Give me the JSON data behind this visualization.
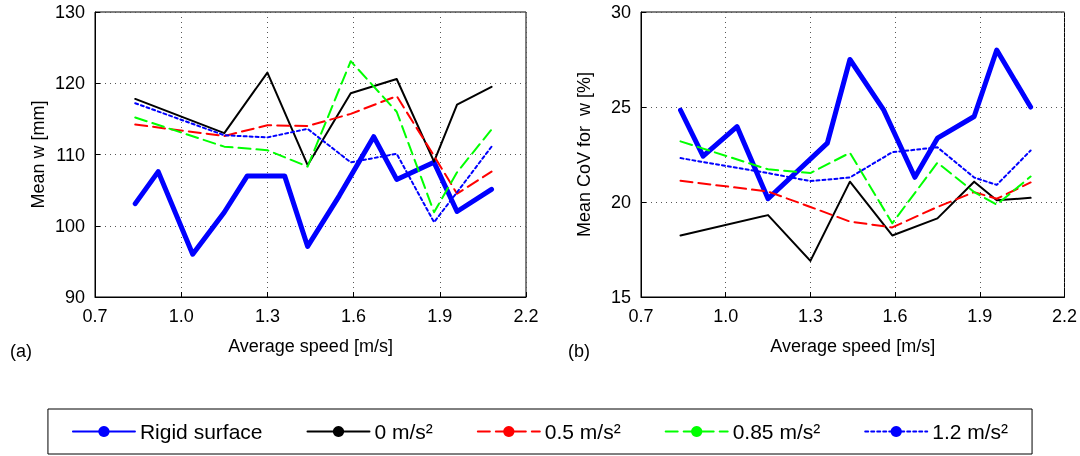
{
  "chart_data": [
    {
      "type": "line",
      "xlabel": "Average speed [m/s]",
      "ylabel": "Mean w [mm]",
      "annotations": [
        "(a)"
      ],
      "xlim": [
        0.7,
        2.2
      ],
      "xticks": [
        0.7,
        {
          "value": 1,
          "label": "1.0"
        },
        1.3,
        1.6,
        1.9,
        2.2
      ],
      "ylim": [
        90,
        130
      ],
      "yticks": [
        90,
        100,
        110,
        120,
        130
      ],
      "grid": true,
      "legend": "bottom",
      "marker": "none",
      "series": [
        {
          "name": "Rigid surface",
          "color": "#0000ff",
          "line_style": "solid",
          "x": [
            0.84,
            0.92,
            1.04,
            1.15,
            1.23,
            1.36,
            1.44,
            1.55,
            1.67,
            1.75,
            1.88,
            1.96,
            2.08
          ],
          "values": [
            103.1,
            107.6,
            96.0,
            101.9,
            107.0,
            107.0,
            97.1,
            104.2,
            112.5,
            106.5,
            108.9,
            102.0,
            105.1
          ]
        },
        {
          "name": "0 m/s²",
          "color": "#000000",
          "line_style": "solid",
          "x": [
            0.84,
            1.15,
            1.3,
            1.44,
            1.59,
            1.75,
            1.88,
            1.96,
            2.08
          ],
          "values": [
            117.8,
            113.0,
            121.5,
            108.5,
            118.6,
            120.6,
            109.0,
            117.0,
            119.5
          ]
        },
        {
          "name": "0.5 m/s²",
          "color": "#ff0000",
          "line_style": "dashed",
          "x": [
            0.84,
            1.15,
            1.3,
            1.44,
            1.59,
            1.75,
            1.88,
            1.96,
            2.08
          ],
          "values": [
            114.2,
            112.6,
            114.1,
            114.0,
            115.7,
            118.2,
            109.8,
            104.5,
            107.6
          ]
        },
        {
          "name": "0.85 m/s²",
          "color": "#00ff00",
          "line_style": "dashed",
          "x": [
            0.84,
            1.15,
            1.3,
            1.44,
            1.59,
            1.75,
            1.88,
            1.96,
            2.08
          ],
          "values": [
            115.2,
            111.1,
            110.6,
            108.3,
            123.1,
            116.0,
            101.9,
            107.5,
            113.5
          ]
        },
        {
          "name": "1.2 m/s²",
          "color": "#0000ff",
          "line_style": "dotted",
          "x": [
            0.84,
            1.15,
            1.3,
            1.44,
            1.59,
            1.75,
            1.88,
            1.96,
            2.08
          ],
          "values": [
            117.2,
            112.7,
            112.4,
            113.6,
            108.9,
            110.1,
            100.5,
            104.7,
            111.1
          ]
        }
      ]
    },
    {
      "type": "line",
      "xlabel": "Average speed [m/s]",
      "ylabel": "Mean CoV for  w [%]",
      "annotations": [
        "(b)"
      ],
      "xlim": [
        0.7,
        2.2
      ],
      "xticks": [
        0.7,
        {
          "value": 1,
          "label": "1.0"
        },
        1.3,
        1.6,
        1.9,
        2.2
      ],
      "ylim": [
        15,
        30
      ],
      "yticks": [
        15,
        20,
        25,
        30
      ],
      "grid": true,
      "marker": "none",
      "series": [
        {
          "color": "#0000ff",
          "line_style": "solid",
          "x": [
            0.84,
            0.92,
            1.04,
            1.15,
            1.36,
            1.44,
            1.56,
            1.67,
            1.75,
            1.88,
            1.96,
            2.08
          ],
          "values": [
            24.83,
            22.41,
            23.97,
            20.17,
            23.1,
            27.5,
            24.83,
            21.3,
            23.36,
            24.5,
            28.0,
            25.0
          ]
        },
        {
          "color": "#000000",
          "line_style": "solid",
          "x": [
            0.84,
            1.15,
            1.3,
            1.44,
            1.59,
            1.75,
            1.88,
            1.96,
            2.08
          ],
          "values": [
            18.24,
            19.31,
            16.9,
            21.07,
            18.24,
            19.14,
            21.07,
            20.09,
            20.22
          ]
        },
        {
          "color": "#ff0000",
          "line_style": "dashed",
          "x": [
            0.84,
            1.15,
            1.3,
            1.44,
            1.59,
            1.75,
            1.88,
            1.96,
            2.08
          ],
          "values": [
            21.12,
            20.55,
            19.74,
            18.97,
            18.66,
            19.74,
            20.52,
            20.17,
            21.03
          ]
        },
        {
          "color": "#00ff00",
          "line_style": "dashed",
          "x": [
            0.84,
            1.15,
            1.3,
            1.44,
            1.59,
            1.75,
            1.88,
            1.96,
            2.08
          ],
          "values": [
            23.19,
            21.72,
            21.52,
            22.59,
            18.88,
            22.07,
            20.52,
            19.86,
            21.34
          ]
        },
        {
          "color": "#0000ff",
          "line_style": "dotted",
          "x": [
            0.84,
            1.15,
            1.3,
            1.44,
            1.59,
            1.75,
            1.88,
            1.96,
            2.08
          ],
          "values": [
            22.31,
            21.52,
            21.1,
            21.29,
            22.62,
            22.88,
            21.29,
            20.9,
            22.71
          ]
        }
      ]
    }
  ]
}
